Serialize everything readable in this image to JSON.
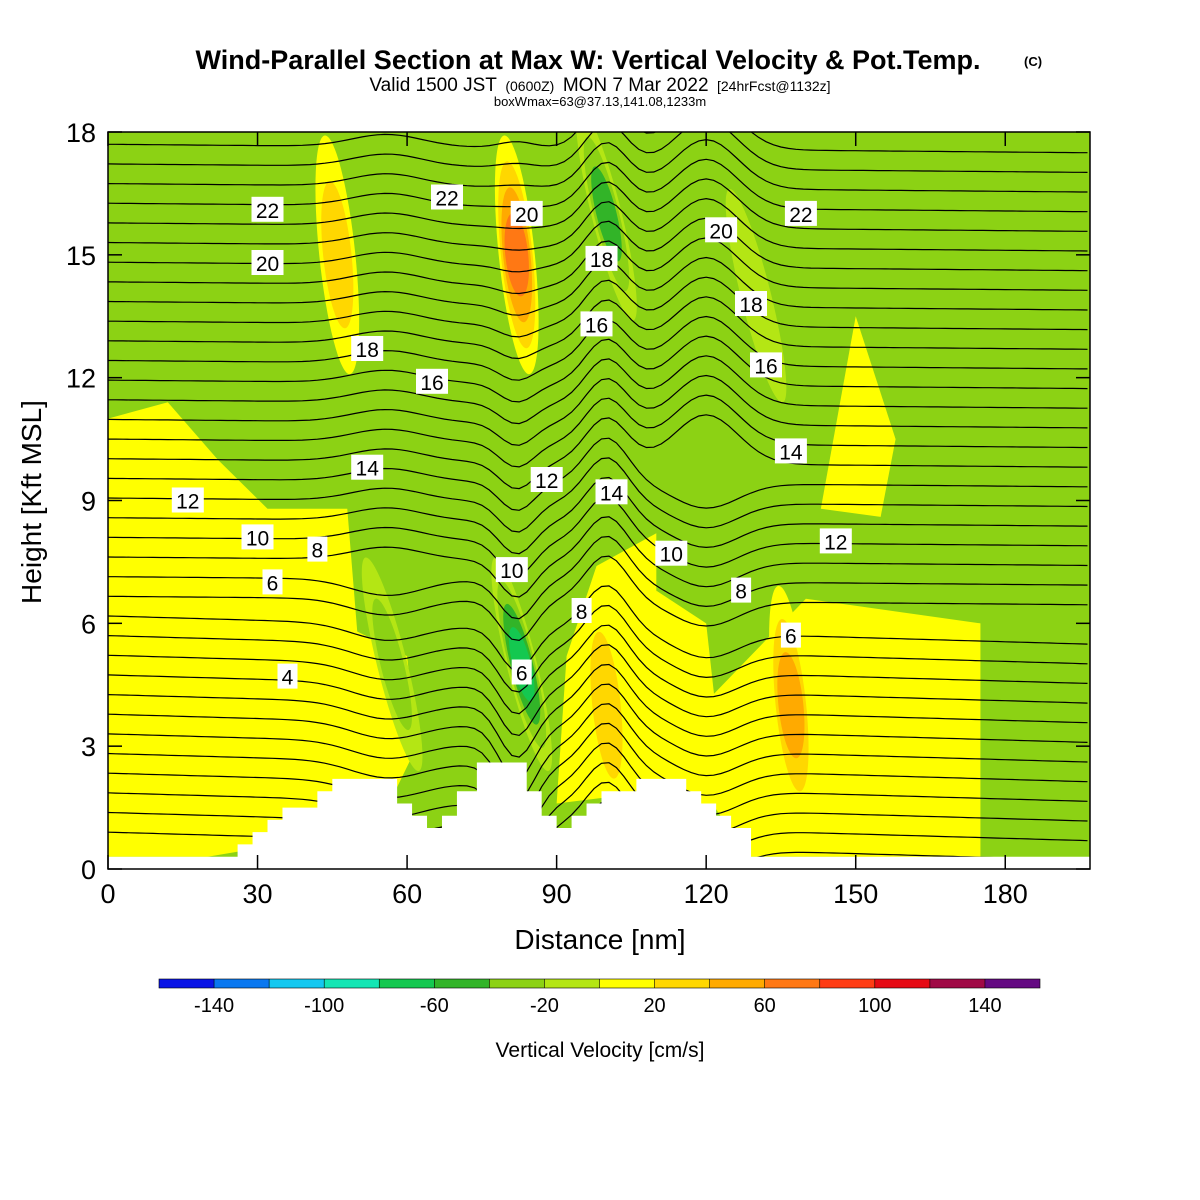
{
  "title": {
    "main": "Wind-Parallel Section at Max W: Vertical Velocity & Pot.Temp.",
    "copyright": "(C)",
    "line2_a": "Valid 1500 JST",
    "line2_b": "(0600Z)",
    "line2_c": "MON 7 Mar 2022",
    "line2_d": "[24hrFcst@1132z]",
    "line3": "boxWmax=63@37.13,141.08,1233m"
  },
  "chart_data": {
    "type": "heatmap",
    "xlabel": "Distance [nm]",
    "ylabel": "Height [Kft MSL]",
    "xlim": [
      0,
      197
    ],
    "ylim": [
      0,
      18
    ],
    "x_ticks": [
      "0",
      "30",
      "60",
      "90",
      "120",
      "150",
      "180"
    ],
    "y_ticks": [
      "0",
      "3",
      "6",
      "9",
      "12",
      "15",
      "18"
    ],
    "colorbar": {
      "label": "Vertical Velocity [cm/s]",
      "boundaries": [
        -160,
        -140,
        -120,
        -100,
        -80,
        -60,
        -40,
        -20,
        0,
        20,
        40,
        60,
        80,
        100,
        120,
        140,
        160
      ],
      "tick_labels": [
        "-140",
        "-100",
        "-60",
        "-20",
        "20",
        "60",
        "100",
        "140"
      ],
      "colors": [
        "#0a14e6",
        "#0a78f0",
        "#14c8f0",
        "#14e6b4",
        "#14c850",
        "#32b428",
        "#8cd214",
        "#b4e614",
        "#ffff00",
        "#ffd700",
        "#ffaa00",
        "#ff7814",
        "#ff3c14",
        "#e60a14",
        "#a00a46",
        "#640a82"
      ]
    },
    "field_features": [
      {
        "kind": "updraft",
        "x": 46,
        "y": 15,
        "value_cms": 35
      },
      {
        "kind": "updraft",
        "x": 82,
        "y": 15,
        "value_cms": 80
      },
      {
        "kind": "downdraft",
        "x": 100,
        "y": 16,
        "value_cms": -70
      },
      {
        "kind": "downdraft",
        "x": 83,
        "y": 5,
        "value_cms": -75
      },
      {
        "kind": "updraft",
        "x": 137,
        "y": 4,
        "value_cms": 55
      },
      {
        "kind": "updraft",
        "x": 100,
        "y": 4,
        "value_cms": 35
      },
      {
        "kind": "downdraft",
        "x": 57,
        "y": 5,
        "value_cms": -35
      },
      {
        "kind": "downdraft",
        "x": 130,
        "y": 14,
        "value_cms": -30
      }
    ],
    "theta_contour_labels": [
      {
        "text": "4",
        "x": 36,
        "y": 4.7
      },
      {
        "text": "6",
        "x": 33,
        "y": 7.0
      },
      {
        "text": "8",
        "x": 42,
        "y": 7.8
      },
      {
        "text": "10",
        "x": 30,
        "y": 8.1
      },
      {
        "text": "12",
        "x": 16,
        "y": 9.0
      },
      {
        "text": "14",
        "x": 52,
        "y": 9.8
      },
      {
        "text": "16",
        "x": 65,
        "y": 11.9
      },
      {
        "text": "18",
        "x": 52,
        "y": 12.7
      },
      {
        "text": "20",
        "x": 32,
        "y": 14.8
      },
      {
        "text": "22",
        "x": 32,
        "y": 16.1
      },
      {
        "text": "22",
        "x": 68,
        "y": 16.4
      },
      {
        "text": "20",
        "x": 84,
        "y": 16.0
      },
      {
        "text": "18",
        "x": 99,
        "y": 14.9
      },
      {
        "text": "16",
        "x": 98,
        "y": 13.3
      },
      {
        "text": "12",
        "x": 88,
        "y": 9.5
      },
      {
        "text": "10",
        "x": 81,
        "y": 7.3
      },
      {
        "text": "6",
        "x": 83,
        "y": 4.8
      },
      {
        "text": "8",
        "x": 95,
        "y": 6.3
      },
      {
        "text": "14",
        "x": 101,
        "y": 9.2
      },
      {
        "text": "10",
        "x": 113,
        "y": 7.7
      },
      {
        "text": "8",
        "x": 127,
        "y": 6.8
      },
      {
        "text": "6",
        "x": 137,
        "y": 5.7
      },
      {
        "text": "20",
        "x": 123,
        "y": 15.6
      },
      {
        "text": "18",
        "x": 129,
        "y": 13.8
      },
      {
        "text": "16",
        "x": 132,
        "y": 12.3
      },
      {
        "text": "14",
        "x": 137,
        "y": 10.2
      },
      {
        "text": "12",
        "x": 146,
        "y": 8.0
      },
      {
        "text": "22",
        "x": 139,
        "y": 16.0
      }
    ],
    "terrain": [
      [
        0,
        0.3
      ],
      [
        26,
        0.3
      ],
      [
        26,
        0.6
      ],
      [
        29,
        0.6
      ],
      [
        29,
        0.9
      ],
      [
        32,
        0.9
      ],
      [
        32,
        1.2
      ],
      [
        35,
        1.2
      ],
      [
        35,
        1.5
      ],
      [
        42,
        1.5
      ],
      [
        42,
        1.9
      ],
      [
        45,
        1.9
      ],
      [
        45,
        2.2
      ],
      [
        58,
        2.2
      ],
      [
        58,
        1.6
      ],
      [
        61,
        1.6
      ],
      [
        61,
        1.3
      ],
      [
        64,
        1.3
      ],
      [
        64,
        1.0
      ],
      [
        67,
        1.0
      ],
      [
        67,
        1.3
      ],
      [
        70,
        1.3
      ],
      [
        70,
        1.9
      ],
      [
        74,
        1.9
      ],
      [
        74,
        2.6
      ],
      [
        84,
        2.6
      ],
      [
        84,
        1.9
      ],
      [
        87,
        1.9
      ],
      [
        87,
        1.3
      ],
      [
        90,
        1.3
      ],
      [
        90,
        1.0
      ],
      [
        93,
        1.0
      ],
      [
        93,
        1.3
      ],
      [
        96,
        1.3
      ],
      [
        96,
        1.6
      ],
      [
        99,
        1.6
      ],
      [
        99,
        1.9
      ],
      [
        106,
        1.9
      ],
      [
        106,
        2.2
      ],
      [
        116,
        2.2
      ],
      [
        116,
        1.9
      ],
      [
        119,
        1.9
      ],
      [
        119,
        1.6
      ],
      [
        122,
        1.6
      ],
      [
        122,
        1.3
      ],
      [
        125,
        1.3
      ],
      [
        125,
        1.0
      ],
      [
        129,
        1.0
      ],
      [
        129,
        0.3
      ],
      [
        197,
        0.3
      ]
    ]
  }
}
